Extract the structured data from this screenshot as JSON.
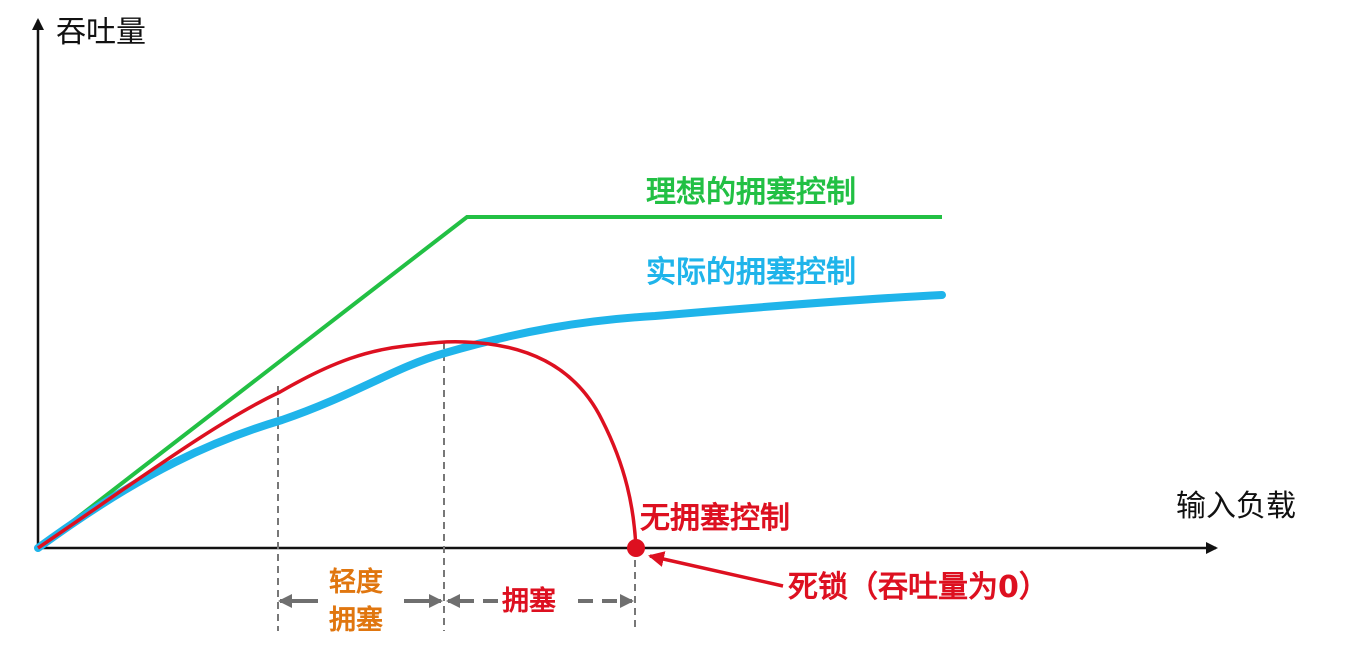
{
  "axes": {
    "y_label": "吞吐量",
    "x_label": "输入负载"
  },
  "curves": {
    "ideal": {
      "label": "理想的拥塞控制",
      "color": "#22c044"
    },
    "actual": {
      "label": "实际的拥塞控制",
      "color": "#1fb4ea"
    },
    "none": {
      "label": "无拥塞控制",
      "color": "#dd1020"
    }
  },
  "regions": {
    "light_congestion": {
      "line1": "轻度",
      "line2": "拥塞",
      "color": "#e0760f"
    },
    "congestion": {
      "label": "拥塞",
      "color": "#dd1020"
    }
  },
  "deadlock": {
    "label": "死锁（吞吐量为0）",
    "color": "#dd1020"
  },
  "colors": {
    "axis": "#111111",
    "guide": "#777777"
  }
}
